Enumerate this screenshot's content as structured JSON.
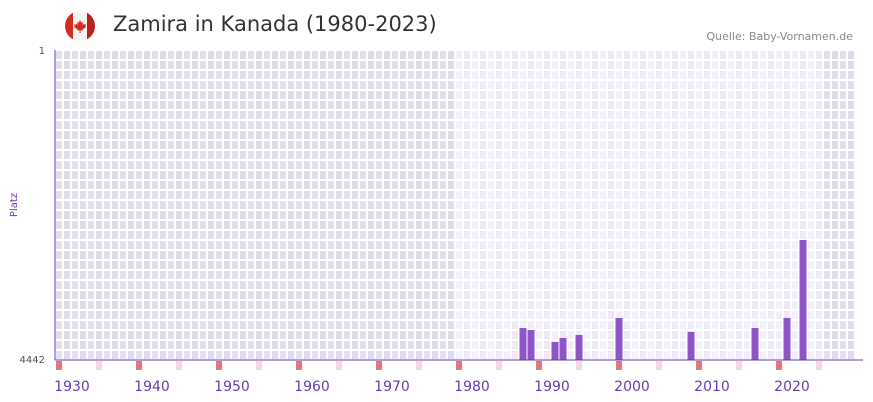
{
  "header": {
    "title": "Zamira in Kanada (1980-2023)",
    "source": "Quelle: Baby-Vornamen.de",
    "flag_icon": "canada-flag-icon"
  },
  "chart_data": {
    "type": "bar",
    "title": "Zamira in Kanada (1980-2023)",
    "xlabel": "",
    "ylabel": "Platz",
    "xlim": [
      1928,
      2028
    ],
    "ylim": [
      4442,
      1
    ],
    "highlight_range": [
      1978,
      2023
    ],
    "x_ticks": [
      "1930",
      "1940",
      "1950",
      "1960",
      "1970",
      "1980",
      "1990",
      "2000",
      "2010",
      "2020"
    ],
    "y_ticks": [
      "1",
      "4442"
    ],
    "x": [
      1986,
      1987,
      1990,
      1991,
      1993,
      1998,
      2007,
      2015,
      2019,
      2021
    ],
    "values": [
      3984,
      4012,
      4184,
      4127,
      4083,
      3840,
      4040,
      3984,
      3840,
      2723
    ],
    "colors": {
      "bar": "#8e55c9",
      "axis": "#6a3ab0",
      "decade": "#e8737c",
      "half_decade": "#f3d6e0"
    }
  }
}
